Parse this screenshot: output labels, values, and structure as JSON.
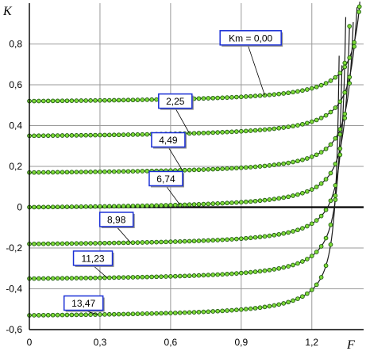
{
  "chart_data": {
    "type": "line",
    "title": "",
    "xlabel": "F",
    "ylabel": "K",
    "xlim": [
      0,
      1.42
    ],
    "ylim": [
      -0.6,
      1.0
    ],
    "x_ticks": [
      "0",
      "0,3",
      "0,6",
      "0,9",
      "1,2"
    ],
    "x_tick_values": [
      0,
      0.3,
      0.6,
      0.9,
      1.2
    ],
    "y_ticks": [
      "0,8",
      "0,6",
      "0,4",
      "0,2",
      "0",
      "-0,2",
      "-0,4",
      "-0,6"
    ],
    "y_tick_values": [
      0.8,
      0.6,
      0.4,
      0.2,
      0,
      -0.2,
      -0.4,
      -0.6
    ],
    "grid": true,
    "series_colors": {
      "line": "#1a1a1a",
      "marker_fill": "#7fdc3a",
      "marker_stroke": "#1f5a10",
      "label_border": "#1a2fd6"
    },
    "series": [
      {
        "label": "Km = 0,00",
        "k0": 0.52,
        "asymptote": 1.44,
        "label_at": [
          0.94,
          0.83
        ]
      },
      {
        "label": "2,25",
        "k0": 0.35,
        "asymptote": 1.42,
        "label_at": [
          0.62,
          0.52
        ]
      },
      {
        "label": "4,49",
        "k0": 0.17,
        "asymptote": 1.4,
        "label_at": [
          0.59,
          0.33
        ]
      },
      {
        "label": "6,74",
        "k0": 0.0,
        "asymptote": 1.38,
        "label_at": [
          0.58,
          0.14
        ]
      },
      {
        "label": "8,98",
        "k0": -0.18,
        "asymptote": 1.36,
        "label_at": [
          0.37,
          -0.06
        ]
      },
      {
        "label": "11,23",
        "k0": -0.35,
        "asymptote": 1.345,
        "label_at": [
          0.27,
          -0.25
        ]
      },
      {
        "label": "13,47",
        "k0": -0.53,
        "asymptote": 1.33,
        "label_at": [
          0.23,
          -0.47
        ]
      }
    ]
  }
}
